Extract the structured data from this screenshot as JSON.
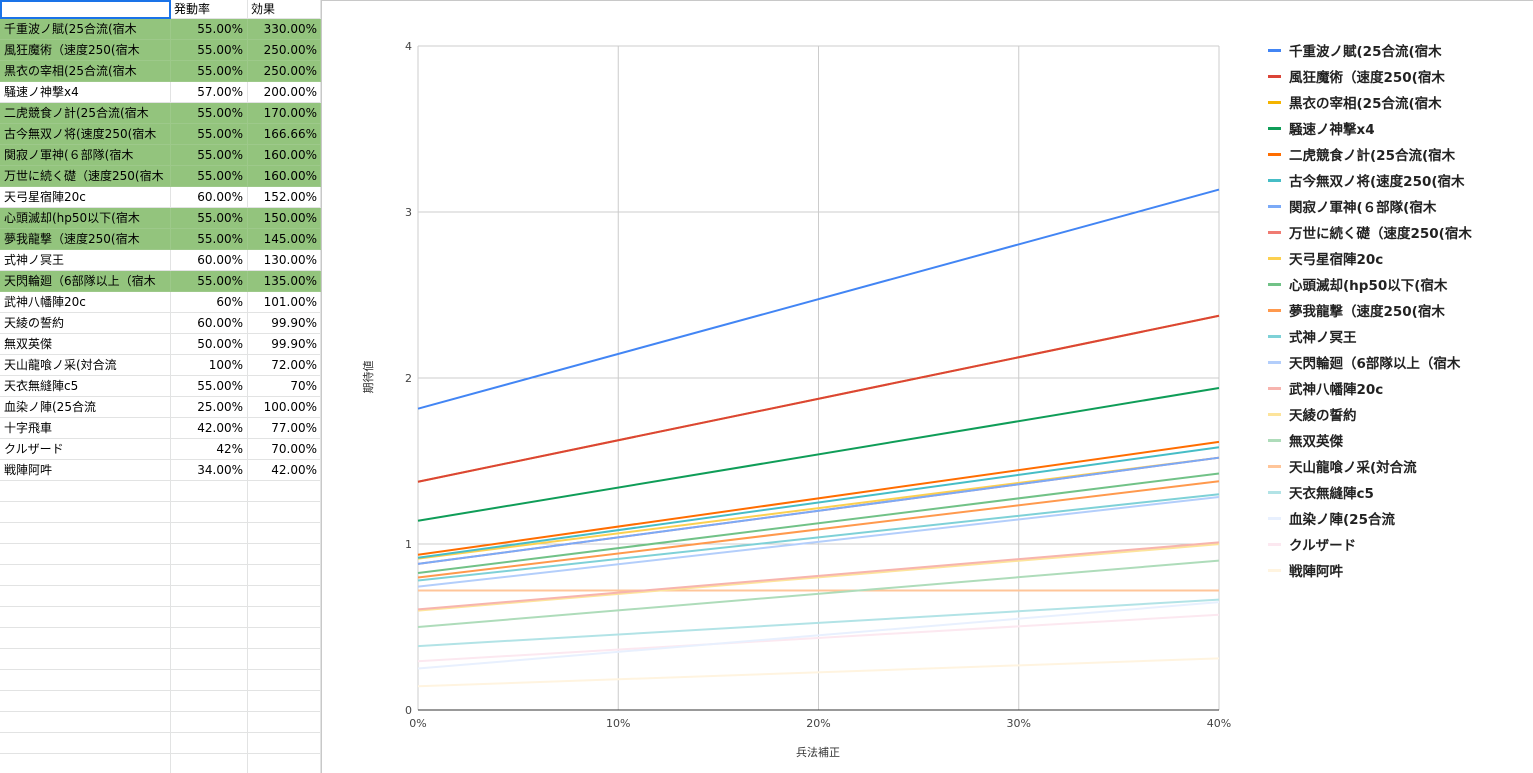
{
  "sheet": {
    "headers": [
      "",
      "発動率",
      "効果"
    ],
    "rows": [
      {
        "name": "千重波ノ賦(25合流(宿木",
        "rate": "55.00%",
        "effect": "330.00%",
        "highlight": true
      },
      {
        "name": "風狂魔術（速度250(宿木",
        "rate": "55.00%",
        "effect": "250.00%",
        "highlight": true
      },
      {
        "name": "黒衣の宰相(25合流(宿木",
        "rate": "55.00%",
        "effect": "250.00%",
        "highlight": true
      },
      {
        "name": "騒速ノ神撃x4",
        "rate": "57.00%",
        "effect": "200.00%",
        "highlight": false
      },
      {
        "name": "二虎競食ノ計(25合流(宿木",
        "rate": "55.00%",
        "effect": "170.00%",
        "highlight": true
      },
      {
        "name": "古今無双ノ将(速度250(宿木",
        "rate": "55.00%",
        "effect": "166.66%",
        "highlight": true
      },
      {
        "name": "関寂ノ軍神(６部隊(宿木",
        "rate": "55.00%",
        "effect": "160.00%",
        "highlight": true
      },
      {
        "name": "万世に続く礎（速度250(宿木",
        "rate": "55.00%",
        "effect": "160.00%",
        "highlight": true
      },
      {
        "name": "天弓星宿陣20c",
        "rate": "60.00%",
        "effect": "152.00%",
        "highlight": false
      },
      {
        "name": "心頭滅却(hp50以下(宿木",
        "rate": "55.00%",
        "effect": "150.00%",
        "highlight": true
      },
      {
        "name": "夢我龍撃（速度250(宿木",
        "rate": "55.00%",
        "effect": "145.00%",
        "highlight": true
      },
      {
        "name": "式神ノ冥王",
        "rate": "60.00%",
        "effect": "130.00%",
        "highlight": false
      },
      {
        "name": "天閃輪廻（6部隊以上（宿木",
        "rate": "55.00%",
        "effect": "135.00%",
        "highlight": true
      },
      {
        "name": "武神八幡陣20c",
        "rate": "60%",
        "effect": "101.00%",
        "highlight": false
      },
      {
        "name": "天綾の誓約",
        "rate": "60.00%",
        "effect": "99.90%",
        "highlight": false
      },
      {
        "name": "無双英傑",
        "rate": "50.00%",
        "effect": "99.90%",
        "highlight": false
      },
      {
        "name": "天山龍喰ノ采(対合流",
        "rate": "100%",
        "effect": "72.00%",
        "highlight": false
      },
      {
        "name": "天衣無縫陣c5",
        "rate": "55.00%",
        "effect": "70%",
        "highlight": false
      },
      {
        "name": "血染ノ陣(25合流",
        "rate": "25.00%",
        "effect": "100.00%",
        "highlight": false
      },
      {
        "name": "十字飛車",
        "rate": "42.00%",
        "effect": "77.00%",
        "highlight": false
      },
      {
        "name": "クルザード",
        "rate": "42%",
        "effect": "70.00%",
        "highlight": false
      },
      {
        "name": "戦陣阿吽",
        "rate": "34.00%",
        "effect": "42.00%",
        "highlight": false
      }
    ],
    "empty_rows": 14
  },
  "chart_data": {
    "type": "line",
    "title": "",
    "xlabel": "兵法補正",
    "ylabel": "期待値",
    "x": [
      0,
      0.4
    ],
    "xticks": [
      "0%",
      "10%",
      "20%",
      "30%",
      "40%"
    ],
    "yticks": [
      "0",
      "1",
      "2",
      "3",
      "4"
    ],
    "xlim": [
      0,
      0.4
    ],
    "ylim": [
      0,
      4
    ],
    "grid": true,
    "legend_position": "right",
    "series": [
      {
        "name": "千重波ノ賦(25合流(宿木",
        "color": "#4285f4",
        "values": [
          1.815,
          3.135
        ]
      },
      {
        "name": "風狂魔術（速度250(宿木",
        "color": "#db4437",
        "values": [
          1.375,
          2.375
        ]
      },
      {
        "name": "黒衣の宰相(25合流(宿木",
        "color": "#f4b400",
        "values": [
          1.375,
          2.375
        ]
      },
      {
        "name": "騒速ノ神撃x4",
        "color": "#0f9d58",
        "values": [
          1.14,
          1.94
        ]
      },
      {
        "name": "二虎競食ノ計(25合流(宿木",
        "color": "#ff6d00",
        "values": [
          0.935,
          1.615
        ]
      },
      {
        "name": "古今無双ノ将(速度250(宿木",
        "color": "#46bdc6",
        "values": [
          0.917,
          1.583
        ]
      },
      {
        "name": "関寂ノ軍神(６部隊(宿木",
        "color": "#7baaf7",
        "values": [
          0.88,
          1.52
        ]
      },
      {
        "name": "万世に続く礎（速度250(宿木",
        "color": "#f07b72",
        "values": [
          0.88,
          1.52
        ]
      },
      {
        "name": "天弓星宿陣20c",
        "color": "#fcd04f",
        "values": [
          0.912,
          1.52
        ]
      },
      {
        "name": "心頭滅却(hp50以下(宿木",
        "color": "#71c287",
        "values": [
          0.825,
          1.425
        ]
      },
      {
        "name": "夢我龍撃（速度250(宿木",
        "color": "#ff994d",
        "values": [
          0.798,
          1.378
        ]
      },
      {
        "name": "式神ノ冥王",
        "color": "#7ed1d7",
        "values": [
          0.78,
          1.3
        ]
      },
      {
        "name": "天閃輪廻（6部隊以上（宿木",
        "color": "#b3cefb",
        "values": [
          0.743,
          1.283
        ]
      },
      {
        "name": "武神八幡陣20c",
        "color": "#f7b4ae",
        "values": [
          0.606,
          1.01
        ]
      },
      {
        "name": "天綾の誓約",
        "color": "#fde49b",
        "values": [
          0.599,
          0.999
        ]
      },
      {
        "name": "無双英傑",
        "color": "#aedcba",
        "values": [
          0.5,
          0.9
        ]
      },
      {
        "name": "天山龍喰ノ采(対合流",
        "color": "#ffc599",
        "values": [
          0.72,
          0.72
        ]
      },
      {
        "name": "天衣無縫陣c5",
        "color": "#b2e3e6",
        "values": [
          0.385,
          0.665
        ]
      },
      {
        "name": "血染ノ陣(25合流",
        "color": "#e8f0fe",
        "values": [
          0.25,
          0.65
        ]
      },
      {
        "name": "クルザード",
        "color": "#fce8f0",
        "values": [
          0.294,
          0.574
        ]
      },
      {
        "name": "戦陣阿吽",
        "color": "#fff4e0",
        "values": [
          0.143,
          0.311
        ]
      }
    ]
  }
}
